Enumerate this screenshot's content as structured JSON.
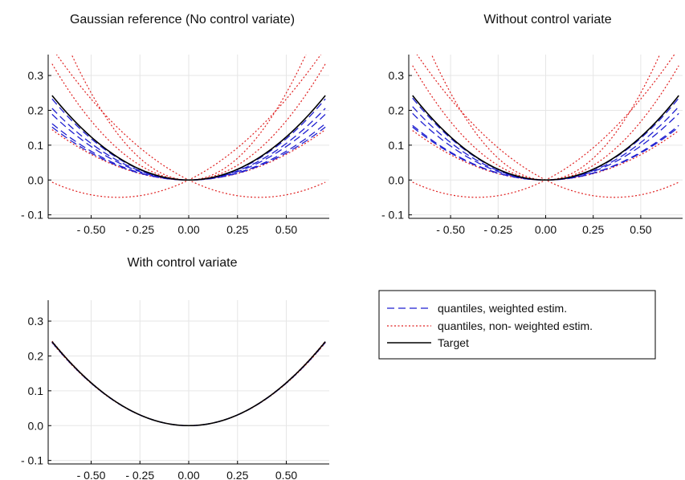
{
  "chart_data": [
    {
      "type": "line",
      "title": "Gaussian reference (No control variate)",
      "xlim": [
        -0.72,
        0.72
      ],
      "ylim": [
        -0.11,
        0.36
      ],
      "x_ticks": [
        -0.5,
        -0.25,
        0,
        0.25,
        0.5
      ],
      "x_tick_labels": [
        "- 0.50",
        "- 0.25",
        "0.00",
        "0.25",
        "0.50"
      ],
      "y_ticks": [
        -0.1,
        0,
        0.1,
        0.2,
        0.3
      ],
      "y_tick_labels": [
        "- 0.1",
        "0.0",
        "0.1",
        "0.2",
        "0.3"
      ],
      "grid": true,
      "x_range": [
        -0.7,
        0.7
      ],
      "series": [
        {
          "group": "target",
          "type": "parabola",
          "a": 0.495,
          "c": 0,
          "color": "#000000",
          "style": "solid"
        },
        {
          "group": "weighted",
          "type": "parabola",
          "a": 0.475,
          "c": 0,
          "color": "#1f1fd0",
          "style": "dashed"
        },
        {
          "group": "weighted",
          "type": "parabola",
          "a": 0.42,
          "c": 0,
          "color": "#1f1fd0",
          "style": "dashed"
        },
        {
          "group": "weighted",
          "type": "parabola",
          "a": 0.385,
          "c": 0,
          "color": "#1f1fd0",
          "style": "dashed"
        },
        {
          "group": "weighted",
          "type": "parabola",
          "a": 0.33,
          "c": 0,
          "color": "#1f1fd0",
          "style": "dashed"
        },
        {
          "group": "weighted",
          "type": "parabola",
          "a": 0.31,
          "c": 0,
          "color": "#1f1fd0",
          "style": "dashed"
        },
        {
          "group": "non-weighted",
          "type": "parabola",
          "a": 0.68,
          "c": 0,
          "color": "#e02020",
          "style": "dotted"
        },
        {
          "group": "non-weighted",
          "type": "parabola",
          "a": 0.295,
          "c": 0,
          "color": "#e02020",
          "style": "dotted"
        },
        {
          "group": "non-weighted",
          "type": "parabola",
          "a": 1.0,
          "c": 0,
          "color": "#e02020",
          "style": "dotted"
        },
        {
          "group": "non-weighted",
          "type": "quad",
          "a": 0.38,
          "b": 0.275,
          "c": 0,
          "color": "#e02020",
          "style": "dotted"
        },
        {
          "group": "non-weighted",
          "type": "quad",
          "a": 0.38,
          "b": -0.275,
          "c": 0,
          "color": "#e02020",
          "style": "dotted"
        }
      ]
    },
    {
      "type": "line",
      "title": "Without control variate",
      "xlim": [
        -0.72,
        0.72
      ],
      "ylim": [
        -0.11,
        0.36
      ],
      "x_ticks": [
        -0.5,
        -0.25,
        0,
        0.25,
        0.5
      ],
      "x_tick_labels": [
        "- 0.50",
        "- 0.25",
        "0.00",
        "0.25",
        "0.50"
      ],
      "y_ticks": [
        -0.1,
        0,
        0.1,
        0.2,
        0.3
      ],
      "y_tick_labels": [
        "- 0.1",
        "0.0",
        "0.1",
        "0.2",
        "0.3"
      ],
      "grid": true,
      "x_range": [
        -0.7,
        0.7
      ],
      "series": [
        {
          "group": "target",
          "type": "parabola",
          "a": 0.495,
          "c": 0,
          "color": "#000000",
          "style": "solid"
        },
        {
          "group": "weighted",
          "type": "parabola",
          "a": 0.48,
          "c": 0,
          "color": "#1f1fd0",
          "style": "dashed"
        },
        {
          "group": "weighted",
          "type": "parabola",
          "a": 0.43,
          "c": 0,
          "color": "#1f1fd0",
          "style": "dashed"
        },
        {
          "group": "weighted",
          "type": "parabola",
          "a": 0.39,
          "c": 0,
          "color": "#1f1fd0",
          "style": "dashed"
        },
        {
          "group": "weighted",
          "type": "parabola",
          "a": 0.32,
          "c": 0,
          "color": "#1f1fd0",
          "style": "dashed"
        },
        {
          "group": "weighted",
          "type": "parabola",
          "a": 0.31,
          "c": 0,
          "color": "#1f1fd0",
          "style": "dashed"
        },
        {
          "group": "non-weighted",
          "type": "parabola",
          "a": 0.67,
          "c": 0,
          "color": "#e02020",
          "style": "dotted"
        },
        {
          "group": "non-weighted",
          "type": "parabola",
          "a": 0.29,
          "c": 0,
          "color": "#e02020",
          "style": "dotted"
        },
        {
          "group": "non-weighted",
          "type": "parabola",
          "a": 1.0,
          "c": 0,
          "color": "#e02020",
          "style": "dotted"
        },
        {
          "group": "non-weighted",
          "type": "quad",
          "a": 0.38,
          "b": 0.275,
          "c": 0,
          "color": "#e02020",
          "style": "dotted"
        },
        {
          "group": "non-weighted",
          "type": "quad",
          "a": 0.38,
          "b": -0.275,
          "c": 0,
          "color": "#e02020",
          "style": "dotted"
        }
      ]
    },
    {
      "type": "line",
      "title": "With control variate",
      "xlim": [
        -0.72,
        0.72
      ],
      "ylim": [
        -0.11,
        0.36
      ],
      "x_ticks": [
        -0.5,
        -0.25,
        0,
        0.25,
        0.5
      ],
      "x_tick_labels": [
        "- 0.50",
        "- 0.25",
        "0.00",
        "0.25",
        "0.50"
      ],
      "y_ticks": [
        -0.1,
        0,
        0.1,
        0.2,
        0.3
      ],
      "y_tick_labels": [
        "- 0.1",
        "0.0",
        "0.1",
        "0.2",
        "0.3"
      ],
      "grid": true,
      "x_range": [
        -0.7,
        0.7
      ],
      "series": [
        {
          "group": "target",
          "type": "parabola",
          "a": 0.492,
          "c": 0,
          "color": "#000000",
          "style": "solid"
        },
        {
          "group": "weighted",
          "type": "parabola",
          "a": 0.49,
          "c": 0,
          "color": "#1f1fd0",
          "style": "dashed"
        },
        {
          "group": "weighted",
          "type": "parabola",
          "a": 0.488,
          "c": 0,
          "color": "#1f1fd0",
          "style": "dashed"
        },
        {
          "group": "non-weighted",
          "type": "parabola",
          "a": 0.495,
          "c": 0,
          "color": "#e02020",
          "style": "dotted"
        },
        {
          "group": "non-weighted",
          "type": "parabola",
          "a": 0.485,
          "c": 0,
          "color": "#e02020",
          "style": "dotted"
        }
      ]
    }
  ],
  "legend": {
    "position": "bottom-right",
    "entries": [
      {
        "label": "quantiles, weighted estim.",
        "color": "#1f1fd0",
        "style": "dashed"
      },
      {
        "label": "quantiles, non- weighted estim.",
        "color": "#e02020",
        "style": "dotted"
      },
      {
        "label": "Target",
        "color": "#000000",
        "style": "solid"
      }
    ]
  }
}
